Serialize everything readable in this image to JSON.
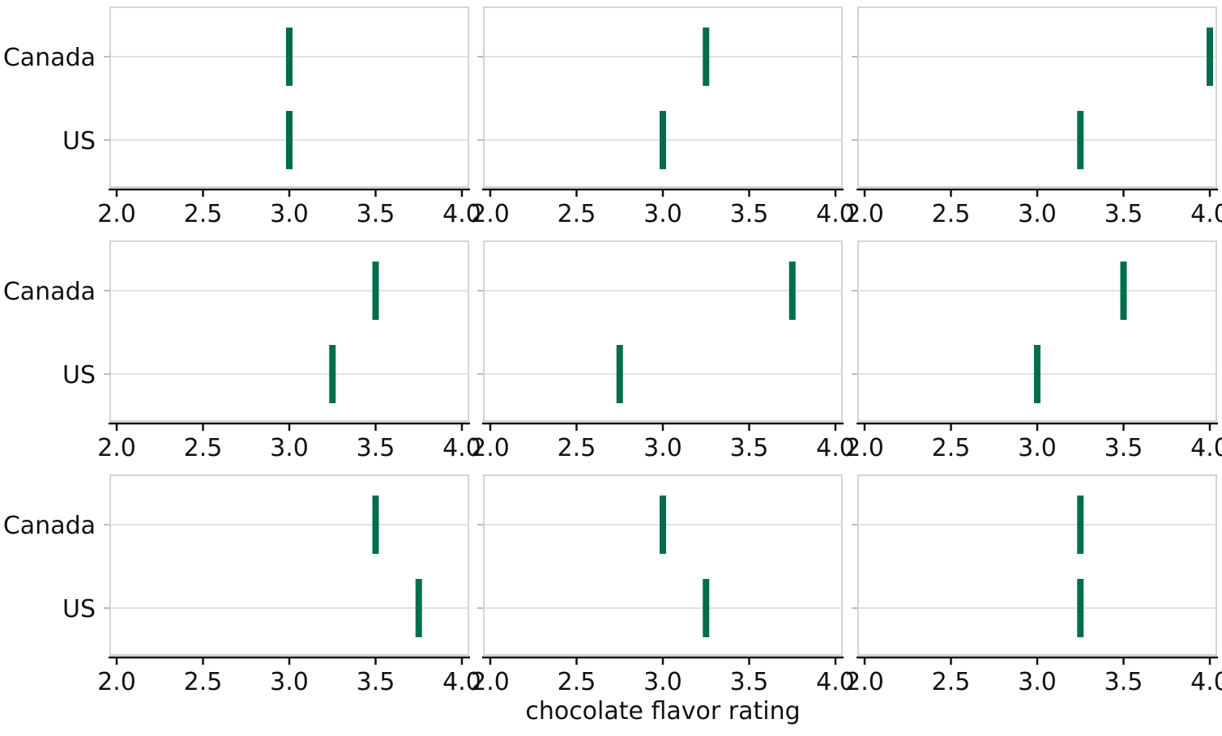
{
  "chart_data": {
    "type": "strip",
    "xlabel": "chocolate flavor rating",
    "xlim": [
      2.0,
      4.0
    ],
    "x_ticks": [
      "2.0",
      "2.5",
      "3.0",
      "3.5",
      "4.0"
    ],
    "categories": [
      "Canada",
      "US"
    ],
    "grid": true,
    "mark_color": "#006d4f",
    "panels": [
      {
        "Canada": 3.0,
        "US": 3.0
      },
      {
        "Canada": 3.25,
        "US": 3.0
      },
      {
        "Canada": 4.0,
        "US": 3.25
      },
      {
        "Canada": 3.5,
        "US": 3.25
      },
      {
        "Canada": 3.75,
        "US": 2.75
      },
      {
        "Canada": 3.5,
        "US": 3.0
      },
      {
        "Canada": 3.5,
        "US": 3.75
      },
      {
        "Canada": 3.0,
        "US": 3.25
      },
      {
        "Canada": 3.25,
        "US": 3.25
      }
    ]
  }
}
